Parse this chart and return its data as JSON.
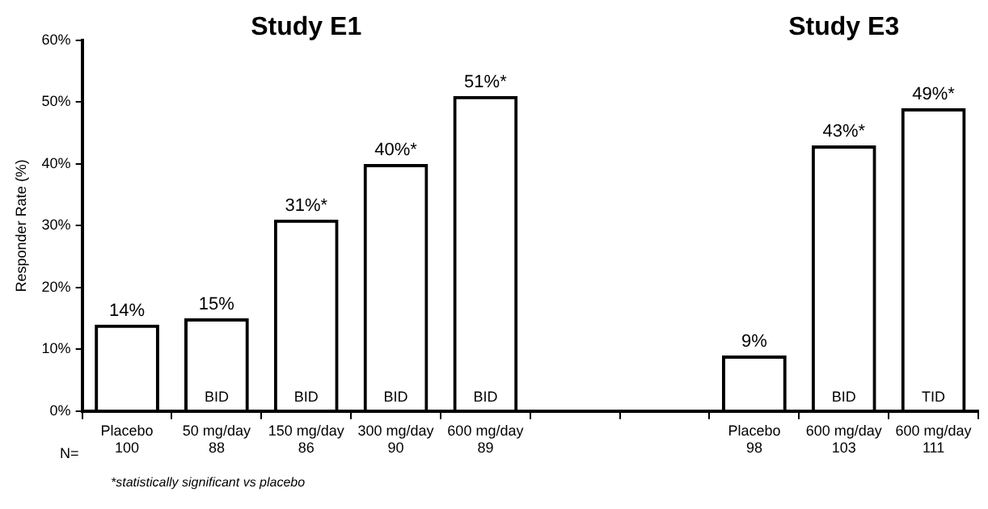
{
  "chart_data": {
    "type": "bar",
    "ylabel": "Responder Rate (%)",
    "categories": [
      "Placebo\n100",
      "50 mg/day\n88",
      "150 mg/day\n86",
      "300 mg/day\n90",
      "600 mg/day\n89",
      null,
      null,
      "Placebo\n98",
      "600 mg/day\n103",
      "600 mg/day\n111"
    ],
    "values": [
      14,
      15,
      31,
      40,
      51,
      null,
      null,
      9,
      43,
      49
    ],
    "value_labels": [
      "14%",
      "15%",
      "31%*",
      "40%*",
      "51%*",
      null,
      null,
      "9%",
      "43%*",
      "49%*"
    ],
    "color": "#000000",
    "ylim": [
      0,
      60
    ],
    "yticks": [
      {
        "value": 0,
        "label": "0%"
      },
      {
        "value": 10,
        "label": "10%"
      },
      {
        "value": 20,
        "label": "20%"
      },
      {
        "value": 30,
        "label": "30%"
      },
      {
        "value": 40,
        "label": "40%"
      },
      {
        "value": 50,
        "label": "50%"
      },
      {
        "value": 60,
        "label": "60%"
      }
    ],
    "grid": false,
    "legend": false,
    "annotations": [
      "Study E1",
      "Study E3",
      "N=",
      "*statistically significant vs placebo",
      {
        "text": "BID",
        "x": "50 mg/day\n88",
        "y": 0
      },
      {
        "text": "BID",
        "x": "150 mg/day\n86",
        "y": 0
      },
      {
        "text": "BID",
        "x": "300 mg/day\n90",
        "y": 0
      },
      {
        "text": "BID",
        "x": "600 mg/day\n89",
        "y": 0
      },
      {
        "text": "BID",
        "x": "600 mg/day\n103",
        "y": 0
      },
      {
        "text": "TID",
        "x": "600 mg/day\n111",
        "y": 0
      }
    ]
  }
}
